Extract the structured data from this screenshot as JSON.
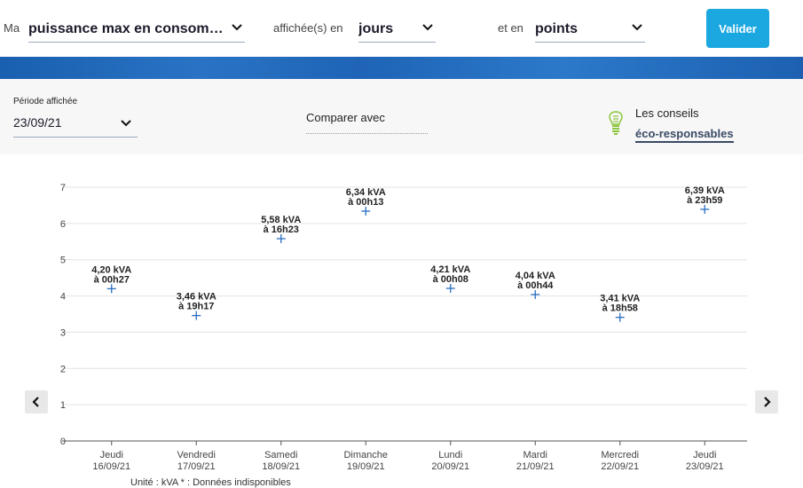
{
  "toolbar": {
    "prefix": "Ma",
    "measure_value": "puissance max en consommat…",
    "shown_in_label": "affichée(s) en",
    "unit_value": "jours",
    "and_in_label": "et en",
    "display_value": "points",
    "validate_label": "Valider"
  },
  "period": {
    "label": "Période affichée",
    "value": "23/09/21"
  },
  "compare": {
    "label": "Comparer avec"
  },
  "tips": {
    "line1": "Les conseils",
    "link": "éco-responsables"
  },
  "footnote": "Unité : kVA   * : Données indisponibles",
  "colors": {
    "accent": "#1ba7e0",
    "marker": "#2a6fc1",
    "banner": "#1f64b6",
    "bulb": "#8cc63f"
  },
  "chart_data": {
    "type": "scatter",
    "ylim": [
      0,
      7
    ],
    "yticks": [
      "0",
      "1",
      "2",
      "3",
      "4",
      "5",
      "6",
      "7"
    ],
    "grid": true,
    "categories": [
      {
        "day": "Jeudi",
        "date": "16/09/21"
      },
      {
        "day": "Vendredi",
        "date": "17/09/21"
      },
      {
        "day": "Samedi",
        "date": "18/09/21"
      },
      {
        "day": "Dimanche",
        "date": "19/09/21"
      },
      {
        "day": "Lundi",
        "date": "20/09/21"
      },
      {
        "day": "Mardi",
        "date": "21/09/21"
      },
      {
        "day": "Mercredi",
        "date": "22/09/21"
      },
      {
        "day": "Jeudi",
        "date": "23/09/21"
      }
    ],
    "values": [
      4.2,
      3.46,
      5.58,
      6.34,
      4.21,
      4.04,
      3.41,
      6.39
    ],
    "labels": [
      {
        "value": "4,20 kVA",
        "time": "à 00h27"
      },
      {
        "value": "3,46 kVA",
        "time": "à 19h17"
      },
      {
        "value": "5,58 kVA",
        "time": "à 16h23"
      },
      {
        "value": "6,34 kVA",
        "time": "à 00h13"
      },
      {
        "value": "4,21 kVA",
        "time": "à 00h08"
      },
      {
        "value": "4,04 kVA",
        "time": "à 00h44"
      },
      {
        "value": "3,41 kVA",
        "time": "à 18h58"
      },
      {
        "value": "6,39 kVA",
        "time": "à 23h59"
      }
    ]
  }
}
